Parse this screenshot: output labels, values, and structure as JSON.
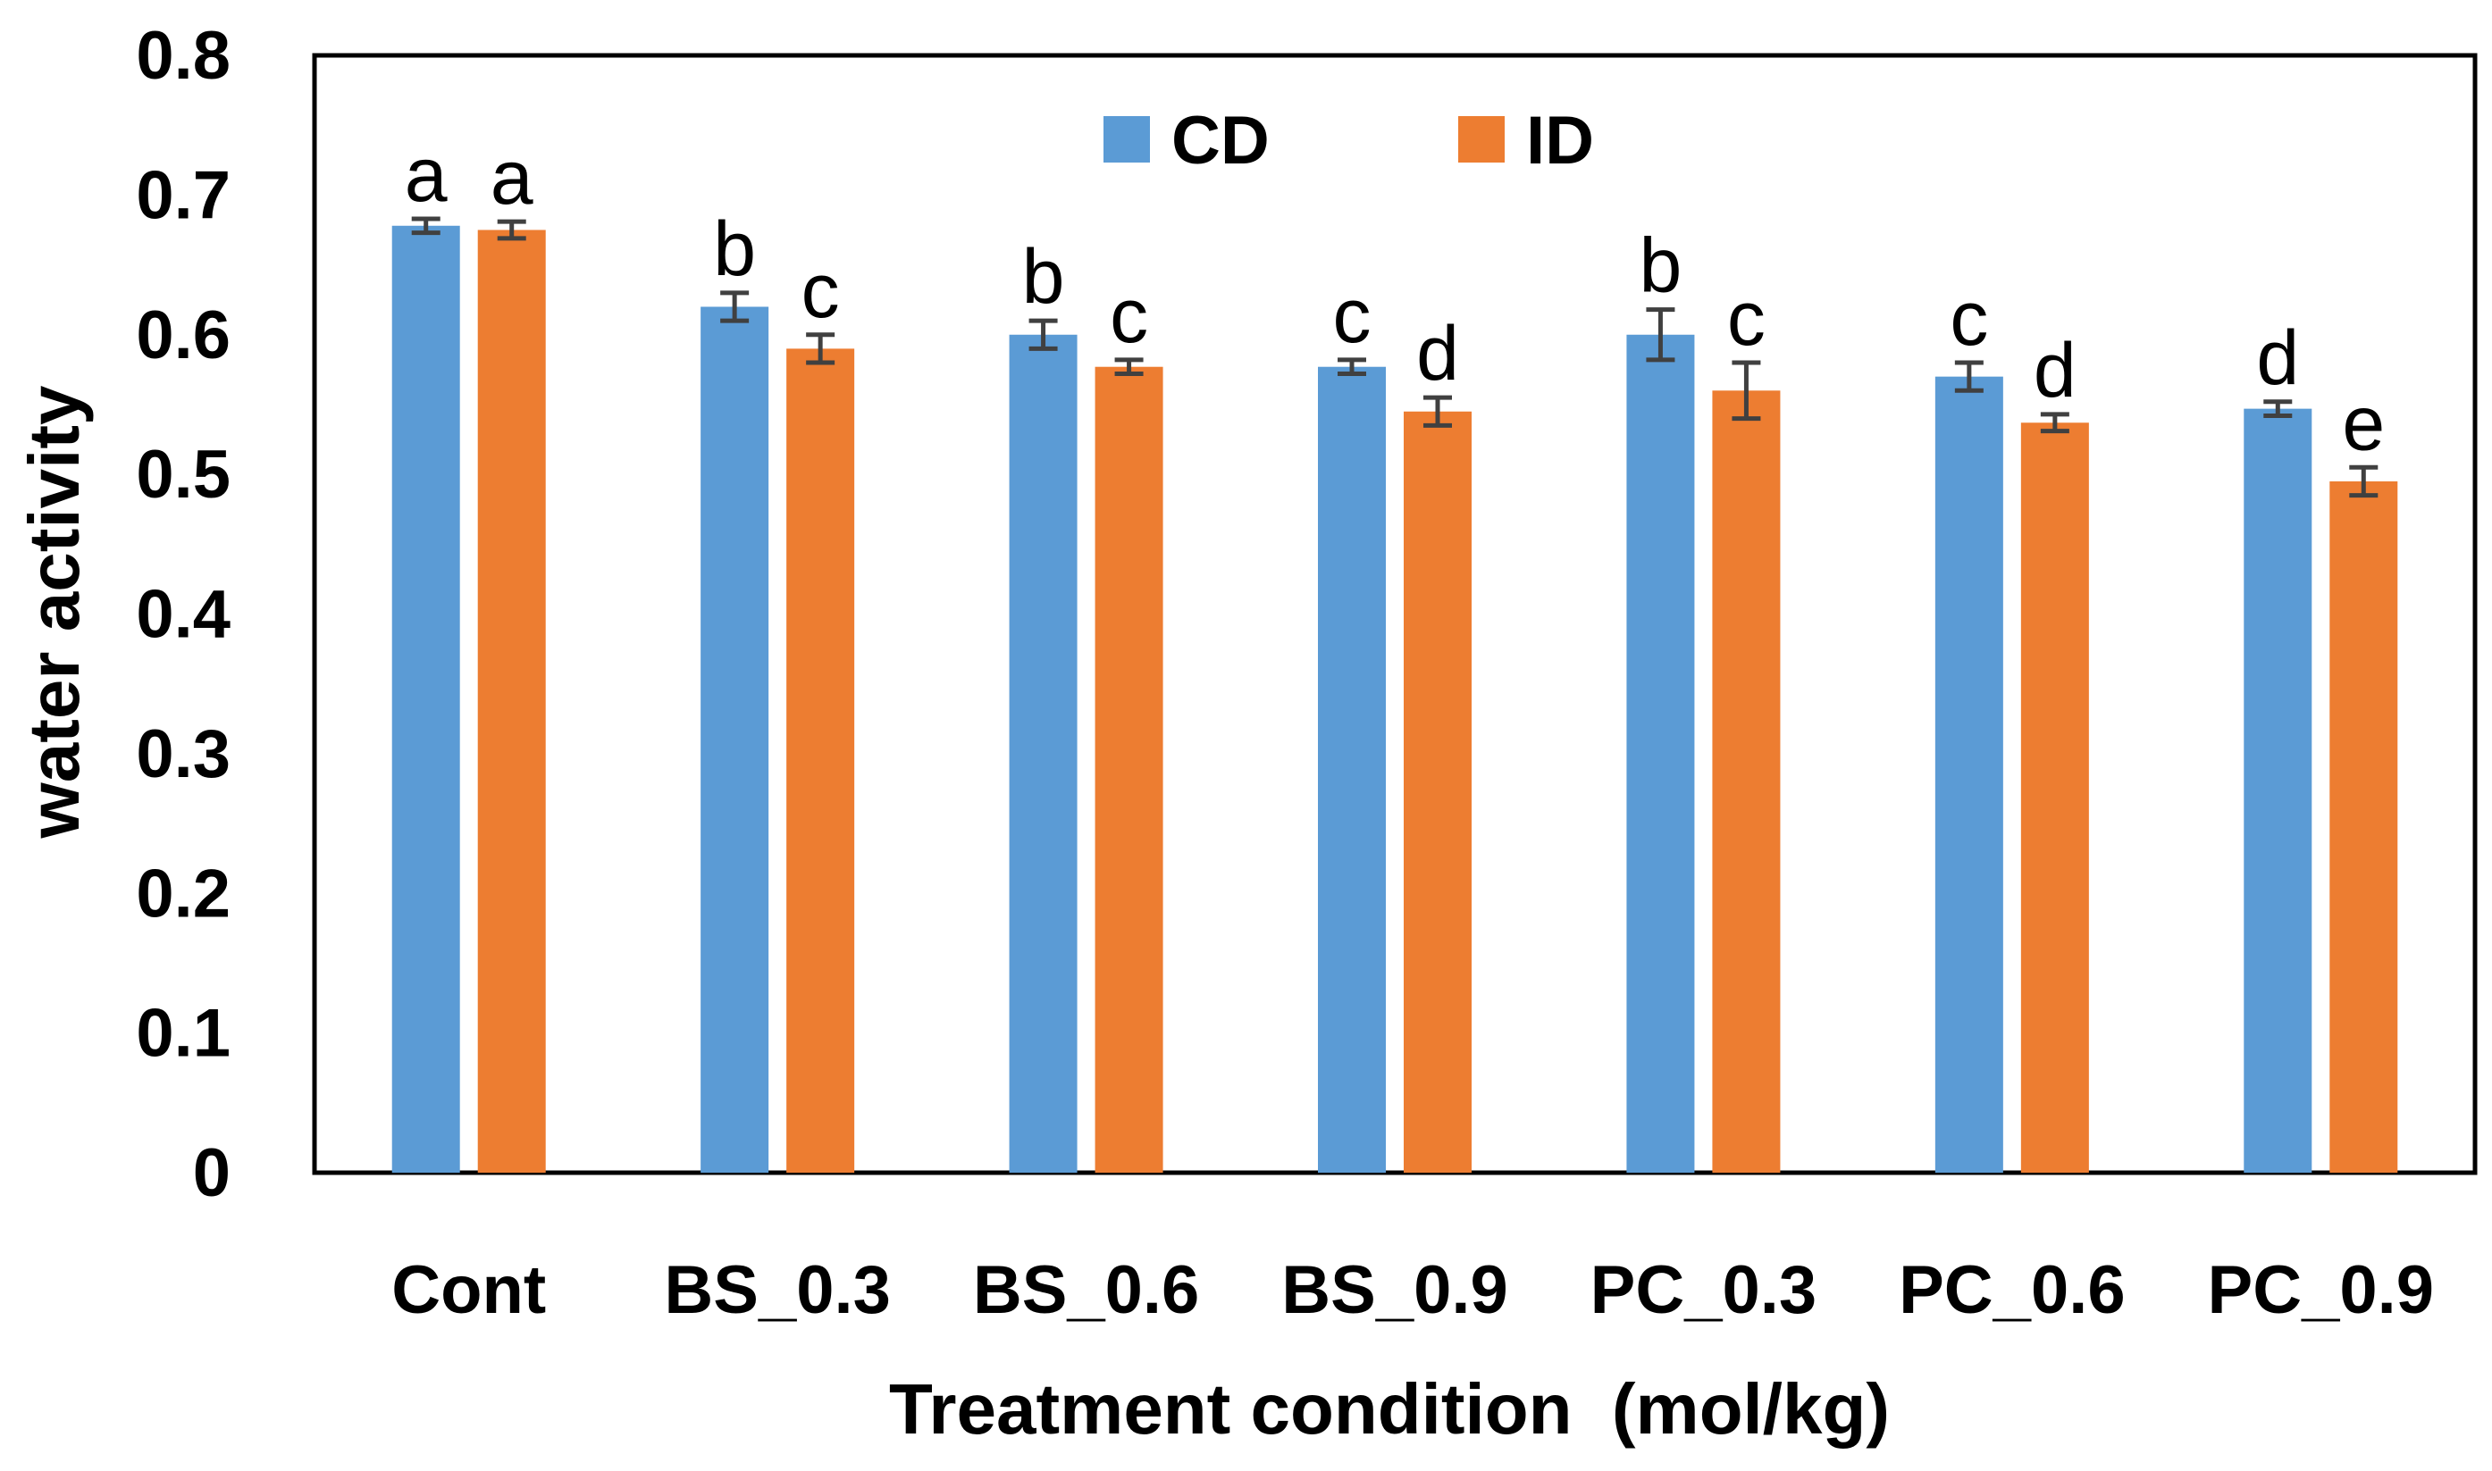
{
  "chart_data": {
    "type": "bar",
    "title": "",
    "xlabel": "Treatment condition  (mol/kg)",
    "ylabel": "water activity",
    "ylim": [
      0,
      0.8
    ],
    "yticks": [
      "0",
      "0.1",
      "0.2",
      "0.3",
      "0.4",
      "0.5",
      "0.6",
      "0.7",
      "0.8"
    ],
    "grid": false,
    "legend_position": "top-center",
    "categories": [
      "Cont",
      "BS_0.3",
      "BS_0.6",
      "BS_0.9",
      "PC_0.3",
      "PC_0.6",
      "PC_0.9"
    ],
    "series": [
      {
        "name": "CD",
        "color": "#5B9BD5",
        "values": [
          0.678,
          0.62,
          0.6,
          0.577,
          0.6,
          0.57,
          0.547
        ],
        "errors": [
          0.005,
          0.01,
          0.01,
          0.005,
          0.018,
          0.01,
          0.005
        ],
        "labels": [
          "a",
          "b",
          "b",
          "c",
          "b",
          "c",
          "d"
        ]
      },
      {
        "name": "ID",
        "color": "#ED7D31",
        "values": [
          0.675,
          0.59,
          0.577,
          0.545,
          0.56,
          0.537,
          0.495
        ],
        "errors": [
          0.006,
          0.01,
          0.005,
          0.01,
          0.02,
          0.006,
          0.01
        ],
        "labels": [
          "a",
          "c",
          "c",
          "d",
          "c",
          "d",
          "e"
        ]
      }
    ]
  }
}
